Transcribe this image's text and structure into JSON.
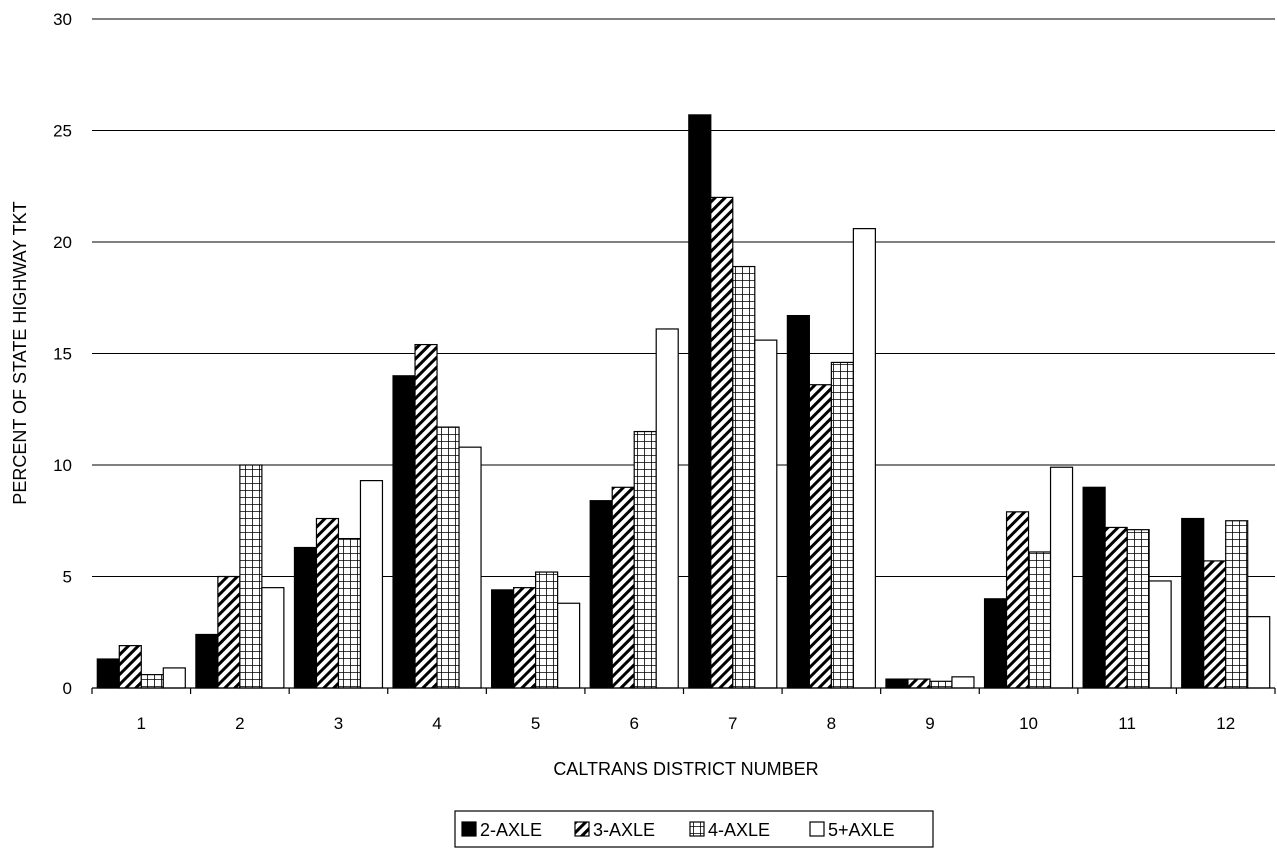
{
  "chart_data": {
    "type": "bar",
    "title": "",
    "xlabel": "CALTRANS DISTRICT NUMBER",
    "ylabel": "PERCENT OF STATE HIGHWAY TKT",
    "ylim": [
      0,
      30
    ],
    "yticks": [
      "0",
      "5",
      "10",
      "15",
      "20",
      "25",
      "30"
    ],
    "grid": true,
    "legend_position": "bottom",
    "categories": [
      "1",
      "2",
      "3",
      "4",
      "5",
      "6",
      "7",
      "8",
      "9",
      "10",
      "11",
      "12"
    ],
    "series": [
      {
        "name": "2-AXLE",
        "fill": "solid-black",
        "values": [
          1.3,
          2.4,
          6.3,
          14.0,
          4.4,
          8.4,
          25.7,
          16.7,
          0.4,
          4.0,
          9.0,
          7.6
        ]
      },
      {
        "name": "3-AXLE",
        "fill": "diagonal-hatch",
        "values": [
          1.9,
          5.0,
          7.6,
          15.4,
          4.5,
          9.0,
          22.0,
          13.6,
          0.4,
          7.9,
          7.2,
          5.7
        ]
      },
      {
        "name": "4-AXLE",
        "fill": "grid-hatch",
        "values": [
          0.6,
          10.0,
          6.7,
          11.7,
          5.2,
          11.5,
          18.9,
          14.6,
          0.3,
          6.1,
          7.1,
          7.5
        ]
      },
      {
        "name": "5+AXLE",
        "fill": "white",
        "values": [
          0.9,
          4.5,
          9.3,
          10.8,
          3.8,
          16.1,
          15.6,
          20.6,
          0.5,
          9.9,
          4.8,
          3.2
        ]
      }
    ]
  }
}
